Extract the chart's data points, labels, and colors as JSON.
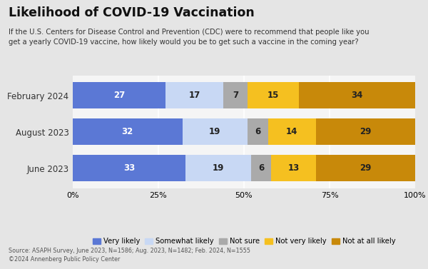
{
  "title": "Likelihood of COVID-19 Vaccination",
  "subtitle": "If the U.S. Centers for Disease Control and Prevention (CDC) were to recommend that people like you\nget a yearly COVID-19 vaccine, how likely would you be to get such a vaccine in the coming year?",
  "categories": [
    "February 2024",
    "August 2023",
    "June 2023"
  ],
  "segments": {
    "Very likely": [
      27,
      32,
      33
    ],
    "Somewhat likely": [
      17,
      19,
      19
    ],
    "Not sure": [
      7,
      6,
      6
    ],
    "Not very likely": [
      15,
      14,
      13
    ],
    "Not at all likely": [
      34,
      29,
      29
    ]
  },
  "colors": {
    "Very likely": "#5b78d5",
    "Somewhat likely": "#c8d8f4",
    "Not sure": "#aaaaaa",
    "Not very likely": "#f5c020",
    "Not at all likely": "#c8890a"
  },
  "label_colors": {
    "Very likely": "#ffffff",
    "Somewhat likely": "#222222",
    "Not sure": "#222222",
    "Not very likely": "#222222",
    "Not at all likely": "#222222"
  },
  "source_text": "Source: ASAPH Survey, June 2023, N=1586; Aug. 2023, N=1482; Feb. 2024, N=1555\n©2024 Annenberg Public Policy Center",
  "background_color": "#e5e5e5",
  "bar_gap_color": "#f5f5f5"
}
